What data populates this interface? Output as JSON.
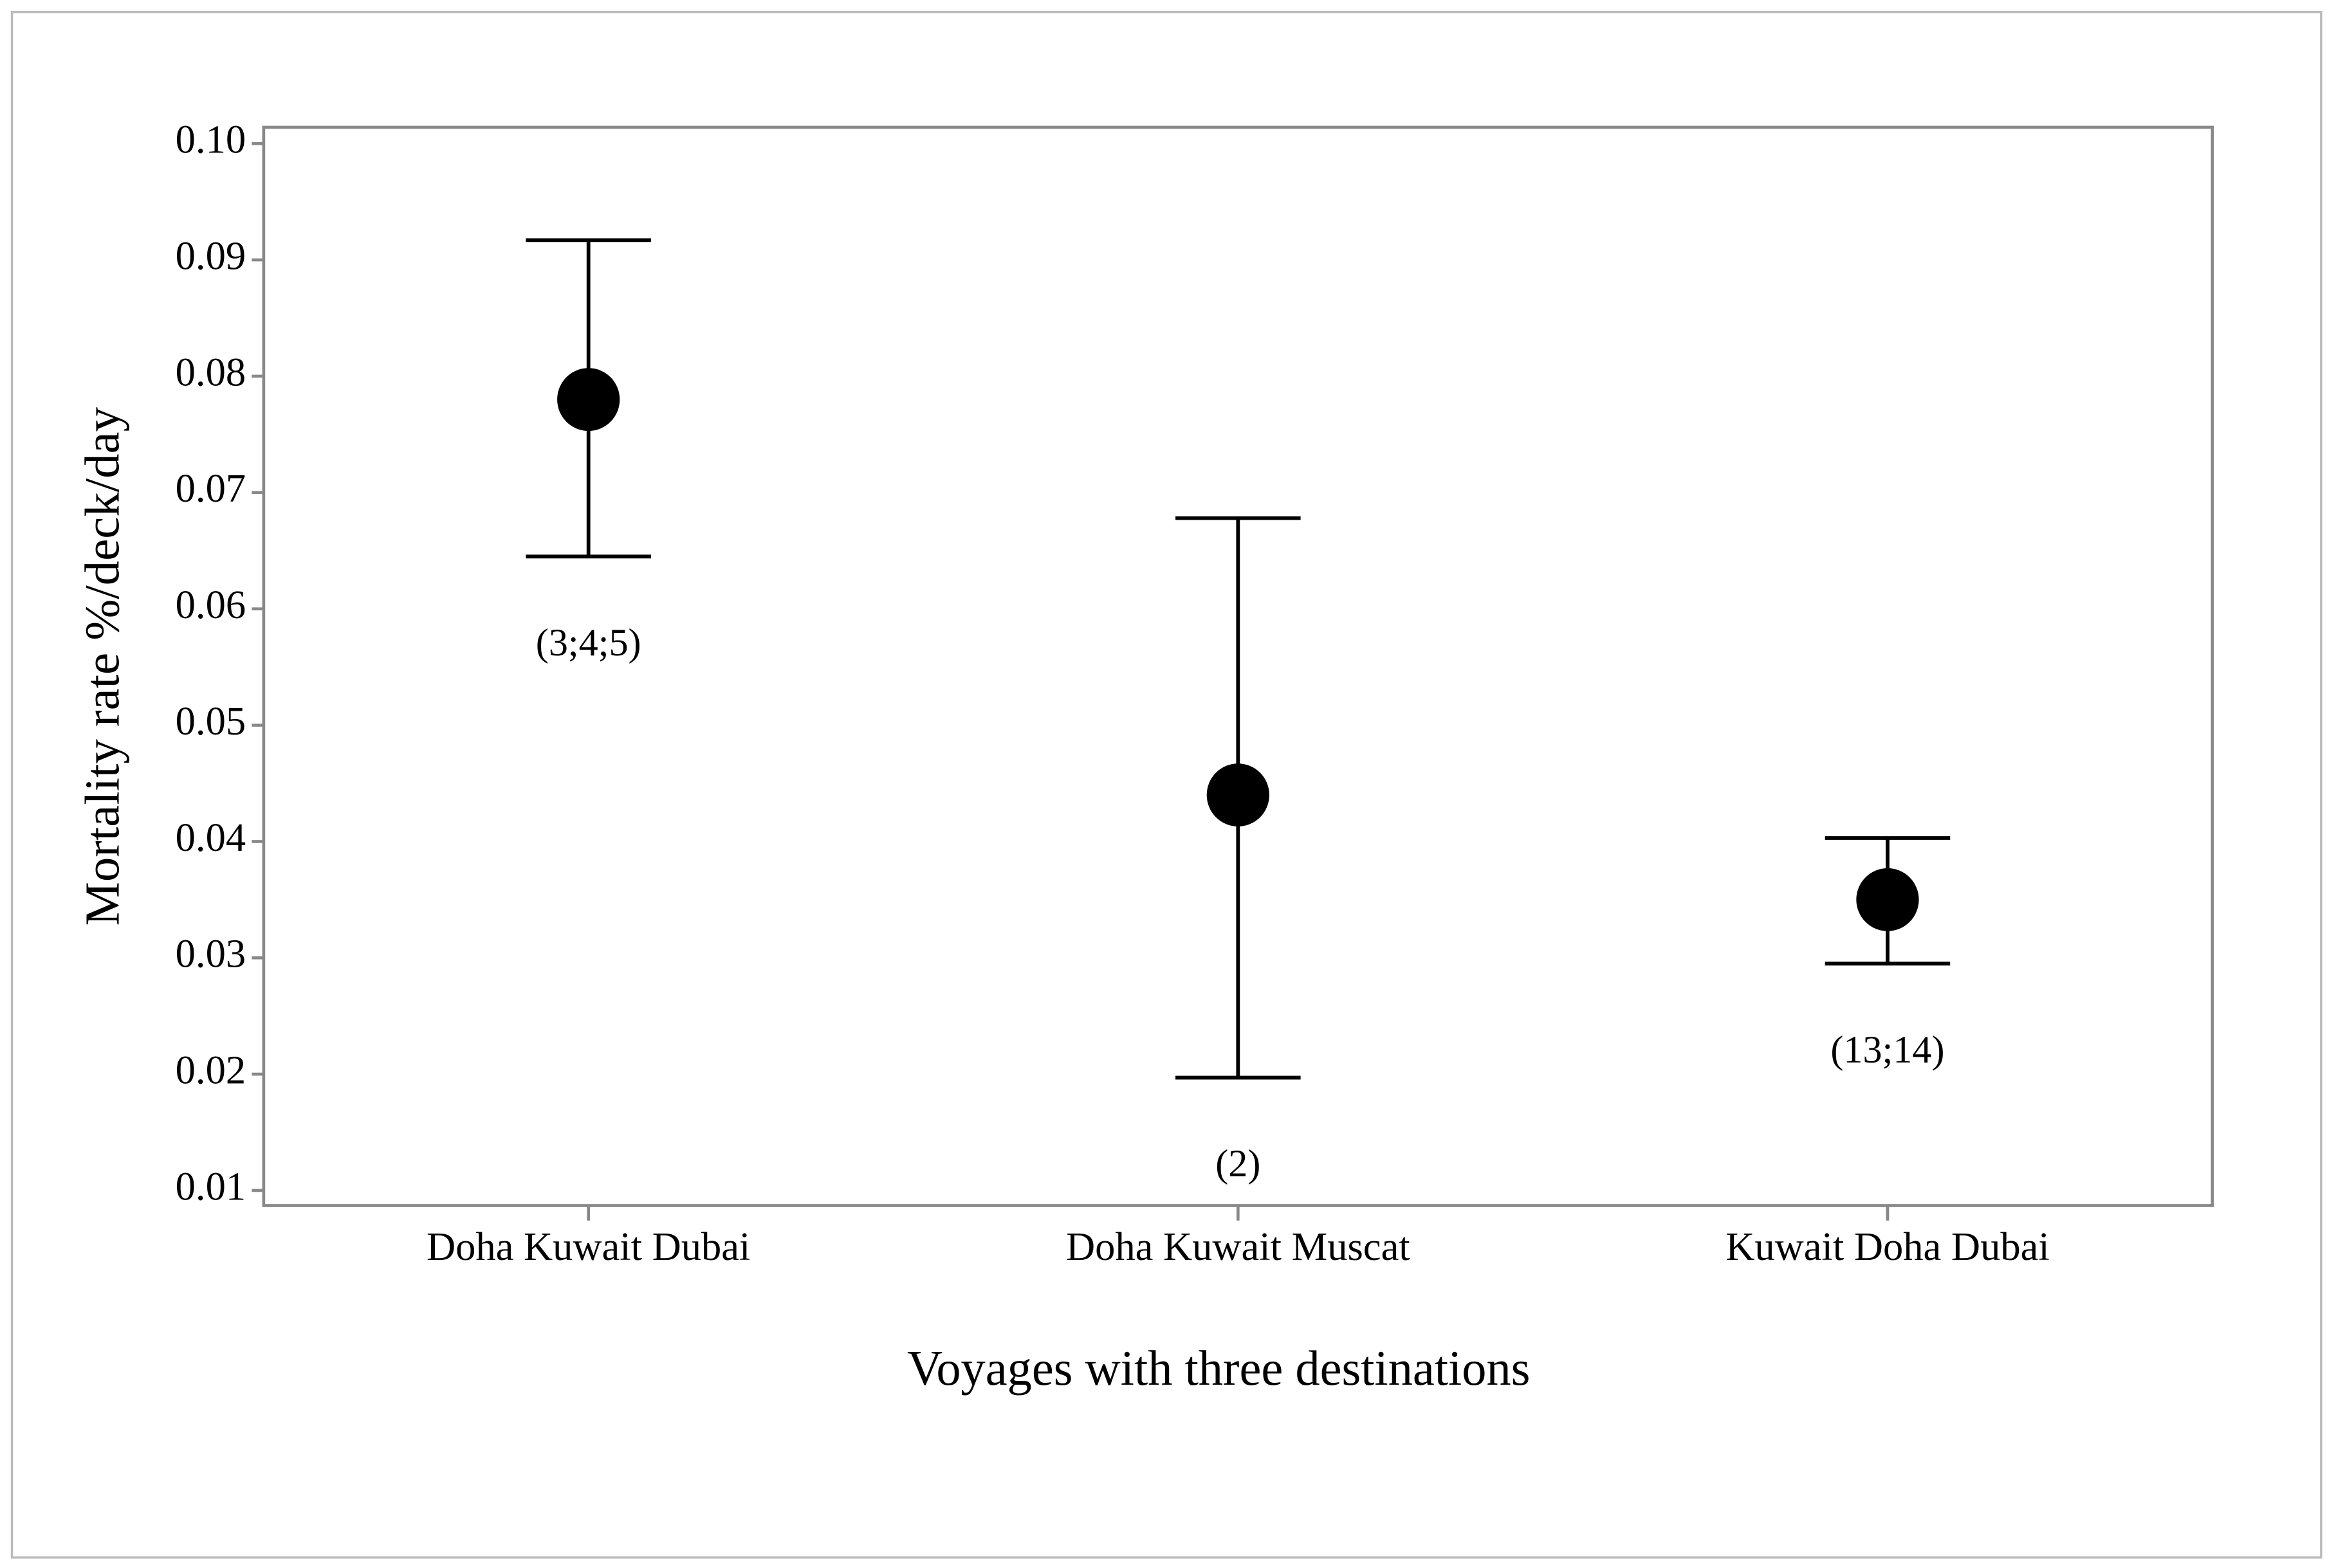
{
  "chart_data": {
    "type": "errorbar",
    "categories": [
      "Doha Kuwait Dubai",
      "Doha Kuwait Muscat",
      "Kuwait Doha Dubai"
    ],
    "values": [
      0.078,
      0.044,
      0.035
    ],
    "lower": [
      0.0645,
      0.0197,
      0.0295
    ],
    "upper": [
      0.0917,
      0.0678,
      0.0403
    ],
    "annotations": [
      "(3;4;5)",
      "(2)",
      "(13;14)"
    ],
    "color": "#000000",
    "xlabel": "Voyages with three destinations",
    "ylabel": "Mortality rate %/deck/day",
    "ylim": [
      0.0087,
      0.1014
    ],
    "yticks": [
      0.01,
      0.02,
      0.03,
      0.04,
      0.05,
      0.06,
      0.07,
      0.08,
      0.09,
      {
        "value": 0.1,
        "label": "0.10"
      }
    ],
    "grid": false
  }
}
